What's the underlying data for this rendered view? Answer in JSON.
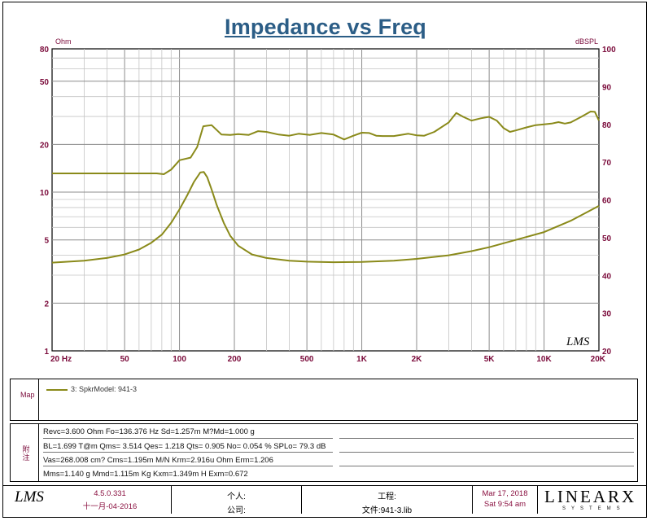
{
  "title": "Impedance vs Freq",
  "chart_data": {
    "type": "line",
    "title": "Impedance vs Freq",
    "x_scale": "log",
    "y_scale": "log",
    "xlim": [
      20,
      20000
    ],
    "ylim": [
      1,
      80
    ],
    "y2lim": [
      20,
      100
    ],
    "ylabel": "Ohm",
    "y2label": "dBSPL",
    "x_ticks": [
      {
        "v": 20,
        "label": "20  Hz"
      },
      {
        "v": 50,
        "label": "50"
      },
      {
        "v": 100,
        "label": "100"
      },
      {
        "v": 200,
        "label": "200"
      },
      {
        "v": 500,
        "label": "500"
      },
      {
        "v": 1000,
        "label": "1K"
      },
      {
        "v": 2000,
        "label": "2K"
      },
      {
        "v": 5000,
        "label": "5K"
      },
      {
        "v": 10000,
        "label": "10K"
      },
      {
        "v": 20000,
        "label": "20K"
      }
    ],
    "y_ticks": [
      80,
      50,
      20,
      10,
      5,
      2,
      1
    ],
    "y2_ticks": [
      100,
      90,
      80,
      70,
      60,
      50,
      40,
      30,
      20
    ],
    "grid": true,
    "series": [
      {
        "name": "3: SpkrModel: 941-3",
        "axis": "left",
        "color": "#8a8a1a",
        "x": [
          20,
          30,
          40,
          50,
          60,
          70,
          80,
          90,
          100,
          110,
          120,
          130,
          136,
          142,
          150,
          160,
          175,
          190,
          210,
          250,
          300,
          400,
          500,
          700,
          1000,
          1500,
          2000,
          3000,
          4000,
          5000,
          7000,
          10000,
          14000,
          20000
        ],
        "values": [
          3.6,
          3.7,
          3.85,
          4.05,
          4.35,
          4.8,
          5.4,
          6.4,
          7.8,
          9.5,
          11.6,
          13.3,
          13.4,
          12.4,
          10.4,
          8.3,
          6.4,
          5.3,
          4.6,
          4.05,
          3.85,
          3.7,
          3.65,
          3.62,
          3.63,
          3.7,
          3.8,
          4.0,
          4.25,
          4.5,
          5.0,
          5.6,
          6.6,
          8.2
        ]
      },
      {
        "name": "SPL",
        "axis": "right",
        "color": "#8a8a1a",
        "x": [
          20,
          40,
          60,
          75,
          82,
          90,
          100,
          115,
          125,
          135,
          150,
          170,
          190,
          210,
          240,
          270,
          300,
          350,
          400,
          450,
          520,
          600,
          700,
          800,
          900,
          1000,
          1100,
          1200,
          1300,
          1500,
          1800,
          2000,
          2200,
          2500,
          3000,
          3300,
          3600,
          4000,
          4500,
          5000,
          5500,
          6000,
          6500,
          7000,
          8000,
          9000,
          10000,
          11000,
          12000,
          13000,
          14000,
          16000,
          18000,
          19000,
          20000
        ],
        "values": [
          67,
          67,
          67,
          67,
          66.8,
          68,
          70.5,
          71.2,
          74,
          79.5,
          79.8,
          77.3,
          77.2,
          77.4,
          77.2,
          78.2,
          78,
          77.3,
          77,
          77.5,
          77.2,
          77.7,
          77.3,
          76,
          77,
          77.8,
          77.7,
          77,
          76.9,
          76.9,
          77.5,
          77.1,
          77,
          78,
          80.5,
          83,
          82,
          81,
          81.6,
          82,
          81,
          79,
          78,
          78.4,
          79.2,
          79.8,
          80,
          80.2,
          80.6,
          80.2,
          80.5,
          82,
          83.4,
          83.3,
          81
        ]
      }
    ]
  },
  "map": {
    "side_label": "Map",
    "legend_label": "3: SpkrModel: 941-3"
  },
  "notes": {
    "side_label": "附注",
    "rows": [
      "Revc=3.600 Ohm  Fo=136.376 Hz  Sd=1.257m M?Md=1.000 g",
      "BL=1.699 T@m  Qms= 3.514  Qes= 1.218  Qts= 0.905  No= 0.054 %  SPLo= 79.3 dB",
      "Vas=268.008 cm?  Cms=1.195m M/N  Krm=2.916u Ohm  Erm=1.206",
      "Mms=1.140 g  Mmd=1.115m Kg  Kxm=1.349m H  Exm=0.672"
    ]
  },
  "footer": {
    "logo": "LMS",
    "version": "4.5.0.331",
    "version_date": "十一月-04-2016",
    "person_label": "个人:",
    "company_label": "公司:",
    "project_label": "工程:",
    "file_label": "文件:941-3.lib",
    "date": "Mar 17, 2018",
    "time": "Sat  9:54 am",
    "brand": "LINEARX",
    "brand_sub": "SYSTEMS"
  },
  "watermark": "LMS"
}
